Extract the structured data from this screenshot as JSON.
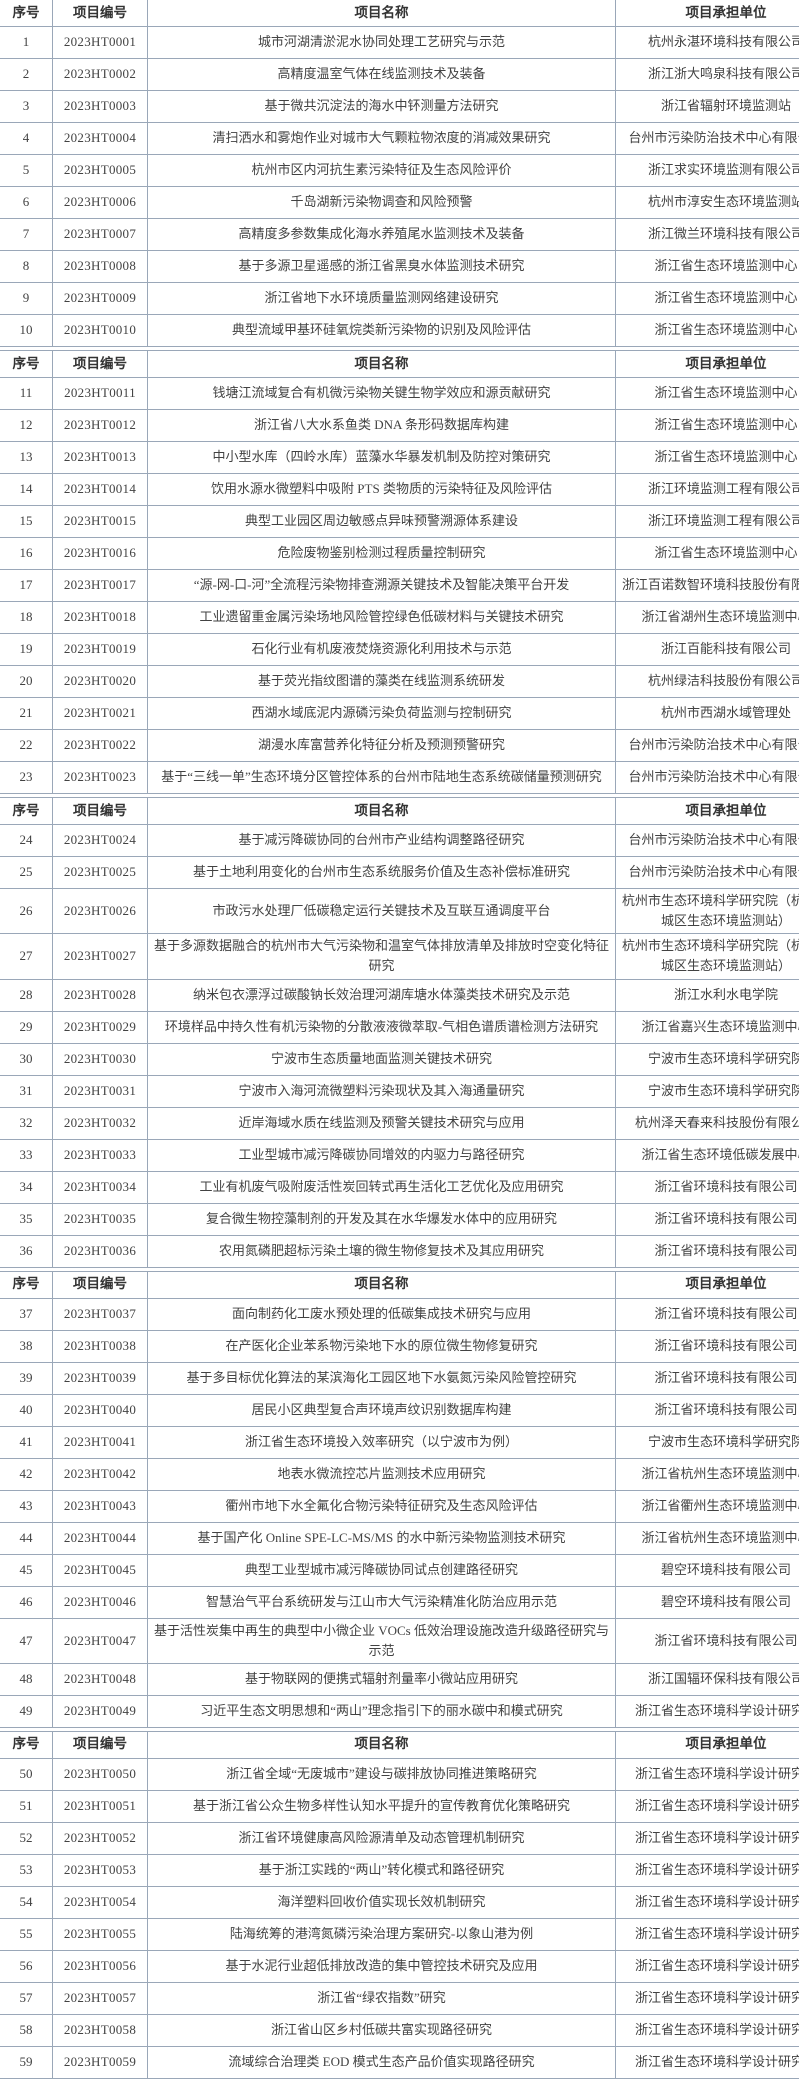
{
  "document": {
    "columns": [
      {
        "key": "index",
        "label": "序号"
      },
      {
        "key": "code",
        "label": "项目编号"
      },
      {
        "key": "name",
        "label": "项目名称"
      },
      {
        "key": "unit",
        "label": "项目承担单位"
      }
    ],
    "sections": [
      {
        "rows": [
          {
            "no": "1",
            "code": "2023HT0001",
            "name": "城市河湖清淤泥水协同处理工艺研究与示范",
            "unit": "杭州永湛环境科技有限公司"
          },
          {
            "no": "2",
            "code": "2023HT0002",
            "name": "高精度温室气体在线监测技术及装备",
            "unit": "浙江浙大鸣泉科技有限公司"
          },
          {
            "no": "3",
            "code": "2023HT0003",
            "name": "基于微共沉淀法的海水中钚测量方法研究",
            "unit": "浙江省辐射环境监测站"
          },
          {
            "no": "4",
            "code": "2023HT0004",
            "name": "清扫洒水和雾炮作业对城市大气颗粒物浓度的消减效果研究",
            "unit": "台州市污染防治技术中心有限公司"
          },
          {
            "no": "5",
            "code": "2023HT0005",
            "name": "杭州市区内河抗生素污染特征及生态风险评价",
            "unit": "浙江求实环境监测有限公司"
          },
          {
            "no": "6",
            "code": "2023HT0006",
            "name": "千岛湖新污染物调查和风险预警",
            "unit": "杭州市淳安生态环境监测站"
          },
          {
            "no": "7",
            "code": "2023HT0007",
            "name": "高精度多参数集成化海水养殖尾水监测技术及装备",
            "unit": "浙江微兰环境科技有限公司"
          },
          {
            "no": "8",
            "code": "2023HT0008",
            "name": "基于多源卫星遥感的浙江省黑臭水体监测技术研究",
            "unit": "浙江省生态环境监测中心"
          },
          {
            "no": "9",
            "code": "2023HT0009",
            "name": "浙江省地下水环境质量监测网络建设研究",
            "unit": "浙江省生态环境监测中心"
          },
          {
            "no": "10",
            "code": "2023HT0010",
            "name": "典型流域甲基环硅氧烷类新污染物的识别及风险评估",
            "unit": "浙江省生态环境监测中心"
          }
        ]
      },
      {
        "rows": [
          {
            "no": "11",
            "code": "2023HT0011",
            "name": "钱塘江流域复合有机微污染物关键生物学效应和源贡献研究",
            "unit": "浙江省生态环境监测中心"
          },
          {
            "no": "12",
            "code": "2023HT0012",
            "name": "浙江省八大水系鱼类 DNA 条形码数据库构建",
            "unit": "浙江省生态环境监测中心"
          },
          {
            "no": "13",
            "code": "2023HT0013",
            "name": "中小型水库（四岭水库）蓝藻水华暴发机制及防控对策研究",
            "unit": "浙江省生态环境监测中心"
          },
          {
            "no": "14",
            "code": "2023HT0014",
            "name": "饮用水源水微塑料中吸附 PTS 类物质的污染特征及风险评估",
            "unit": "浙江环境监测工程有限公司"
          },
          {
            "no": "15",
            "code": "2023HT0015",
            "name": "典型工业园区周边敏感点异味预警溯源体系建设",
            "unit": "浙江环境监测工程有限公司"
          },
          {
            "no": "16",
            "code": "2023HT0016",
            "name": "危险废物鉴别检测过程质量控制研究",
            "unit": "浙江省生态环境监测中心"
          },
          {
            "no": "17",
            "code": "2023HT0017",
            "name": "“源-网-口-河”全流程污染物排查溯源关键技术及智能决策平台开发",
            "unit": "浙江百诺数智环境科技股份有限公司"
          },
          {
            "no": "18",
            "code": "2023HT0018",
            "name": "工业遗留重金属污染场地风险管控绿色低碳材料与关键技术研究",
            "unit": "浙江省湖州生态环境监测中心"
          },
          {
            "no": "19",
            "code": "2023HT0019",
            "name": "石化行业有机废液焚烧资源化利用技术与示范",
            "unit": "浙江百能科技有限公司"
          },
          {
            "no": "20",
            "code": "2023HT0020",
            "name": "基于荧光指纹图谱的藻类在线监测系统研发",
            "unit": "杭州绿洁科技股份有限公司"
          },
          {
            "no": "21",
            "code": "2023HT0021",
            "name": "西湖水域底泥内源磷污染负荷监测与控制研究",
            "unit": "杭州市西湖水域管理处"
          },
          {
            "no": "22",
            "code": "2023HT0022",
            "name": "湖漫水库富营养化特征分析及预测预警研究",
            "unit": "台州市污染防治技术中心有限公司"
          },
          {
            "no": "23",
            "code": "2023HT0023",
            "name": "基于“三线一单”生态环境分区管控体系的台州市陆地生态系统碳储量预测研究",
            "unit": "台州市污染防治技术中心有限公司"
          }
        ]
      },
      {
        "rows": [
          {
            "no": "24",
            "code": "2023HT0024",
            "name": "基于减污降碳协同的台州市产业结构调整路径研究",
            "unit": "台州市污染防治技术中心有限公司"
          },
          {
            "no": "25",
            "code": "2023HT0025",
            "name": "基于土地利用变化的台州市生态系统服务价值及生态补偿标准研究",
            "unit": "台州市污染防治技术中心有限公司"
          },
          {
            "no": "26",
            "code": "2023HT0026",
            "name": "市政污水处理厂低碳稳定运行关键技术及互联互通调度平台",
            "unit": "杭州市生态环境科学研究院（杭州市城区生态环境监测站）"
          },
          {
            "no": "27",
            "code": "2023HT0027",
            "name": "基于多源数据融合的杭州市大气污染物和温室气体排放清单及排放时空变化特征研究",
            "unit": "杭州市生态环境科学研究院（杭州市城区生态环境监测站）"
          },
          {
            "no": "28",
            "code": "2023HT0028",
            "name": "纳米包衣漂浮过碳酸钠长效治理河湖库塘水体藻类技术研究及示范",
            "unit": "浙江水利水电学院"
          },
          {
            "no": "29",
            "code": "2023HT0029",
            "name": "环境样品中持久性有机污染物的分散液液微萃取-气相色谱质谱检测方法研究",
            "unit": "浙江省嘉兴生态环境监测中心"
          },
          {
            "no": "30",
            "code": "2023HT0030",
            "name": "宁波市生态质量地面监测关键技术研究",
            "unit": "宁波市生态环境科学研究院"
          },
          {
            "no": "31",
            "code": "2023HT0031",
            "name": "宁波市入海河流微塑料污染现状及其入海通量研究",
            "unit": "宁波市生态环境科学研究院"
          },
          {
            "no": "32",
            "code": "2023HT0032",
            "name": "近岸海域水质在线监测及预警关键技术研究与应用",
            "unit": "杭州泽天春来科技股份有限公司"
          },
          {
            "no": "33",
            "code": "2023HT0033",
            "name": "工业型城市减污降碳协同增效的内驱力与路径研究",
            "unit": "浙江省生态环境低碳发展中心"
          },
          {
            "no": "34",
            "code": "2023HT0034",
            "name": "工业有机废气吸附废活性炭回转式再生活化工艺优化及应用研究",
            "unit": "浙江省环境科技有限公司"
          },
          {
            "no": "35",
            "code": "2023HT0035",
            "name": "复合微生物控藻制剂的开发及其在水华爆发水体中的应用研究",
            "unit": "浙江省环境科技有限公司"
          },
          {
            "no": "36",
            "code": "2023HT0036",
            "name": "农用氮磷肥超标污染土壤的微生物修复技术及其应用研究",
            "unit": "浙江省环境科技有限公司"
          }
        ]
      },
      {
        "rows": [
          {
            "no": "37",
            "code": "2023HT0037",
            "name": "面向制药化工废水预处理的低碳集成技术研究与应用",
            "unit": "浙江省环境科技有限公司"
          },
          {
            "no": "38",
            "code": "2023HT0038",
            "name": "在产医化企业苯系物污染地下水的原位微生物修复研究",
            "unit": "浙江省环境科技有限公司"
          },
          {
            "no": "39",
            "code": "2023HT0039",
            "name": "基于多目标优化算法的某滨海化工园区地下水氨氮污染风险管控研究",
            "unit": "浙江省环境科技有限公司"
          },
          {
            "no": "40",
            "code": "2023HT0040",
            "name": "居民小区典型复合声环境声纹识别数据库构建",
            "unit": "浙江省环境科技有限公司"
          },
          {
            "no": "41",
            "code": "2023HT0041",
            "name": "浙江省生态环境投入效率研究（以宁波市为例）",
            "unit": "宁波市生态环境科学研究院"
          },
          {
            "no": "42",
            "code": "2023HT0042",
            "name": "地表水微流控芯片监测技术应用研究",
            "unit": "浙江省杭州生态环境监测中心"
          },
          {
            "no": "43",
            "code": "2023HT0043",
            "name": "衢州市地下水全氟化合物污染特征研究及生态风险评估",
            "unit": "浙江省衢州生态环境监测中心"
          },
          {
            "no": "44",
            "code": "2023HT0044",
            "name": "基于国产化 Online SPE-LC-MS/MS 的水中新污染物监测技术研究",
            "unit": "浙江省杭州生态环境监测中心"
          },
          {
            "no": "45",
            "code": "2023HT0045",
            "name": "典型工业型城市减污降碳协同试点创建路径研究",
            "unit": "碧空环境科技有限公司"
          },
          {
            "no": "46",
            "code": "2023HT0046",
            "name": "智慧治气平台系统研发与江山市大气污染精准化防治应用示范",
            "unit": "碧空环境科技有限公司"
          },
          {
            "no": "47",
            "code": "2023HT0047",
            "name": "基于活性炭集中再生的典型中小微企业 VOCs 低效治理设施改造升级路径研究与示范",
            "unit": "浙江省环境科技有限公司"
          },
          {
            "no": "48",
            "code": "2023HT0048",
            "name": "基于物联网的便携式辐射剂量率小微站应用研究",
            "unit": "浙江国辐环保科技有限公司"
          },
          {
            "no": "49",
            "code": "2023HT0049",
            "name": "习近平生态文明思想和“两山”理念指引下的丽水碳中和模式研究",
            "unit": "浙江省生态环境科学设计研究院"
          }
        ]
      },
      {
        "rows": [
          {
            "no": "50",
            "code": "2023HT0050",
            "name": "浙江省全域“无废城市”建设与碳排放协同推进策略研究",
            "unit": "浙江省生态环境科学设计研究院"
          },
          {
            "no": "51",
            "code": "2023HT0051",
            "name": "基于浙江省公众生物多样性认知水平提升的宣传教育优化策略研究",
            "unit": "浙江省生态环境科学设计研究院"
          },
          {
            "no": "52",
            "code": "2023HT0052",
            "name": "浙江省环境健康高风险源清单及动态管理机制研究",
            "unit": "浙江省生态环境科学设计研究院"
          },
          {
            "no": "53",
            "code": "2023HT0053",
            "name": "基于浙江实践的“两山”转化模式和路径研究",
            "unit": "浙江省生态环境科学设计研究院"
          },
          {
            "no": "54",
            "code": "2023HT0054",
            "name": "海洋塑料回收价值实现长效机制研究",
            "unit": "浙江省生态环境科学设计研究院"
          },
          {
            "no": "55",
            "code": "2023HT0055",
            "name": "陆海统筹的港湾氮磷污染治理方案研究-以象山港为例",
            "unit": "浙江省生态环境科学设计研究院"
          },
          {
            "no": "56",
            "code": "2023HT0056",
            "name": "基于水泥行业超低排放改造的集中管控技术研究及应用",
            "unit": "浙江省生态环境科学设计研究院"
          },
          {
            "no": "57",
            "code": "2023HT0057",
            "name": "浙江省“绿农指数”研究",
            "unit": "浙江省生态环境科学设计研究院"
          },
          {
            "no": "58",
            "code": "2023HT0058",
            "name": "浙江省山区乡村低碳共富实现路径研究",
            "unit": "浙江省生态环境科学设计研究院"
          },
          {
            "no": "59",
            "code": "2023HT0059",
            "name": "流域综合治理类 EOD 模式生态产品价值实现路径研究",
            "unit": "浙江省生态环境科学设计研究院"
          }
        ]
      }
    ]
  },
  "colors": {
    "background": "#ffffff",
    "border": "#9aa7b8",
    "text": "#414141",
    "header_text": "#333333"
  }
}
